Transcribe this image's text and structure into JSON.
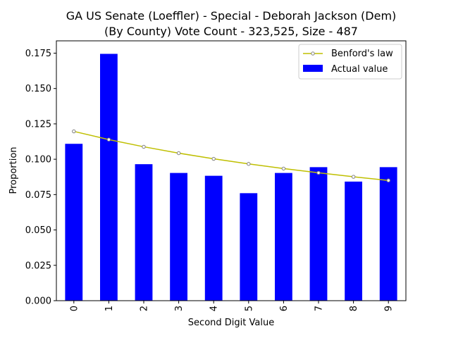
{
  "chart_data": {
    "type": "bar",
    "title_line1": "GA US Senate (Loeffler) - Special - Deborah Jackson (Dem)",
    "title_line2": "(By County) Vote Count - 323,525, Size - 487",
    "xlabel": "Second Digit Value",
    "ylabel": "Proportion",
    "categories": [
      "0",
      "1",
      "2",
      "3",
      "4",
      "5",
      "6",
      "7",
      "8",
      "9"
    ],
    "ylim": [
      0,
      0.1837
    ],
    "yticks": [
      "0.000",
      "0.025",
      "0.050",
      "0.075",
      "0.100",
      "0.125",
      "0.150",
      "0.175"
    ],
    "ytick_values": [
      0,
      0.025,
      0.05,
      0.075,
      0.1,
      0.125,
      0.15,
      0.175
    ],
    "grid": false,
    "legend_position": "top-right",
    "series": [
      {
        "name": "Actual value",
        "kind": "bar",
        "color": "#0000ff",
        "values": [
          0.1109,
          0.1745,
          0.0965,
          0.0903,
          0.0883,
          0.076,
          0.0903,
          0.0944,
          0.0842,
          0.0944
        ]
      },
      {
        "name": "Benford's law",
        "kind": "line",
        "color": "#bfbf00",
        "marker_color": "#808080",
        "values": [
          0.1197,
          0.1139,
          0.1088,
          0.1043,
          0.1003,
          0.0967,
          0.0934,
          0.0904,
          0.0876,
          0.085
        ]
      }
    ]
  }
}
